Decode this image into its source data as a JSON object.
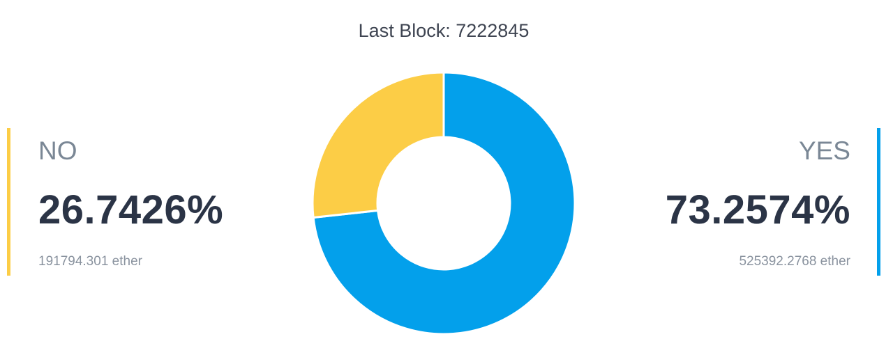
{
  "header": {
    "last_block_label": "Last Block: 7222845"
  },
  "colors": {
    "no": "#fccd46",
    "yes": "#03a0eb"
  },
  "chart_data": {
    "type": "pie",
    "title": "",
    "donut": true,
    "categories": [
      "NO",
      "YES"
    ],
    "values": [
      26.7426,
      73.2574
    ],
    "legend": "none"
  },
  "results": {
    "no": {
      "label": "NO",
      "percent": "26.7426%",
      "amount": "191794.301 ether"
    },
    "yes": {
      "label": "YES",
      "percent": "73.2574%",
      "amount": "525392.2768 ether"
    }
  }
}
